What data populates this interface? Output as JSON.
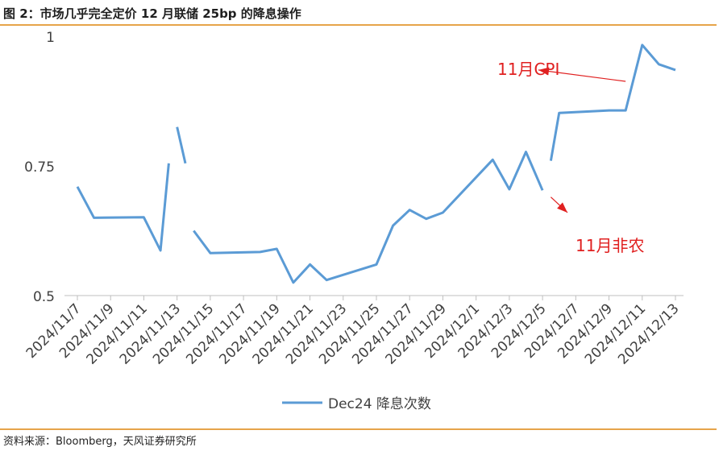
{
  "title": "图 2：市场几乎完全定价 12 月联储 25bp 的降息操作",
  "source": "资料来源：Bloomberg，天风证券研究所",
  "colors": {
    "line": "#5b9bd5",
    "annotation": "#e02020",
    "axis": "#bfbfbf",
    "rule": "#e6a44a"
  },
  "chart_data": {
    "type": "line",
    "title": "",
    "xlabel": "",
    "ylabel": "",
    "ylim": [
      0.5,
      1
    ],
    "y_ticks": [
      {
        "value": 0.5,
        "label": "0.5"
      },
      {
        "value": 0.75,
        "label": "0.75"
      },
      {
        "value": 1,
        "label": "1"
      }
    ],
    "x_range": [
      "2024-11-07",
      "2024-12-13"
    ],
    "x_ticks": [
      {
        "date": "2024-11-07",
        "label": "2024/11/7"
      },
      {
        "date": "2024-11-09",
        "label": "2024/11/9"
      },
      {
        "date": "2024-11-11",
        "label": "2024/11/11"
      },
      {
        "date": "2024-11-13",
        "label": "2024/11/13"
      },
      {
        "date": "2024-11-15",
        "label": "2024/11/15"
      },
      {
        "date": "2024-11-17",
        "label": "2024/11/17"
      },
      {
        "date": "2024-11-19",
        "label": "2024/11/19"
      },
      {
        "date": "2024-11-21",
        "label": "2024/11/21"
      },
      {
        "date": "2024-11-23",
        "label": "2024/11/23"
      },
      {
        "date": "2024-11-25",
        "label": "2024/11/25"
      },
      {
        "date": "2024-11-27",
        "label": "2024/11/27"
      },
      {
        "date": "2024-11-29",
        "label": "2024/11/29"
      },
      {
        "date": "2024-12-01",
        "label": "2024/12/1"
      },
      {
        "date": "2024-12-03",
        "label": "2024/12/3"
      },
      {
        "date": "2024-12-05",
        "label": "2024/12/5"
      },
      {
        "date": "2024-12-07",
        "label": "2024/12/7"
      },
      {
        "date": "2024-12-09",
        "label": "2024/12/9"
      },
      {
        "date": "2024-12-11",
        "label": "2024/12/11"
      },
      {
        "date": "2024-12-13",
        "label": "2024/12/13"
      }
    ],
    "grid": false,
    "legend": {
      "position": "bottom"
    },
    "series": [
      {
        "name": "Dec24 降息次数",
        "segments": [
          [
            {
              "x": "2024-11-07",
              "y": 0.71
            },
            {
              "x": "2024-11-08",
              "y": 0.65
            },
            {
              "x": "2024-11-11",
              "y": 0.651
            },
            {
              "x": "2024-11-12",
              "y": 0.587
            },
            {
              "x": "2024-11-12 12:00",
              "y": 0.755
            }
          ],
          [
            {
              "x": "2024-11-13",
              "y": 0.825
            },
            {
              "x": "2024-11-13 12:00",
              "y": 0.755
            }
          ],
          [
            {
              "x": "2024-11-14",
              "y": 0.625
            },
            {
              "x": "2024-11-15",
              "y": 0.582
            },
            {
              "x": "2024-11-18",
              "y": 0.584
            },
            {
              "x": "2024-11-19",
              "y": 0.59
            },
            {
              "x": "2024-11-20",
              "y": 0.525
            },
            {
              "x": "2024-11-21",
              "y": 0.56
            },
            {
              "x": "2024-11-22",
              "y": 0.53
            },
            {
              "x": "2024-11-25",
              "y": 0.56
            },
            {
              "x": "2024-11-26",
              "y": 0.635
            },
            {
              "x": "2024-11-27",
              "y": 0.665
            },
            {
              "x": "2024-11-28",
              "y": 0.648
            },
            {
              "x": "2024-11-29",
              "y": 0.66
            },
            {
              "x": "2024-12-02",
              "y": 0.762
            },
            {
              "x": "2024-12-03",
              "y": 0.705
            },
            {
              "x": "2024-12-04",
              "y": 0.777
            },
            {
              "x": "2024-12-05",
              "y": 0.703
            }
          ],
          [
            {
              "x": "2024-12-05 12:00",
              "y": 0.76
            },
            {
              "x": "2024-12-06",
              "y": 0.852
            },
            {
              "x": "2024-12-09",
              "y": 0.857
            },
            {
              "x": "2024-12-10",
              "y": 0.857
            },
            {
              "x": "2024-12-11",
              "y": 0.983
            },
            {
              "x": "2024-12-12",
              "y": 0.946
            },
            {
              "x": "2024-12-13",
              "y": 0.935
            }
          ]
        ]
      }
    ],
    "annotations": [
      {
        "text": "11月CPI",
        "target": {
          "x": "2024-12-04 18:00",
          "y": 0.935
        },
        "tail": {
          "x": "2024-12-10",
          "y": 0.913
        }
      },
      {
        "text": "11月非农",
        "target": {
          "x": "2024-12-06 12:00",
          "y": 0.66
        },
        "tail": {
          "x": "2024-12-05 12:00",
          "y": 0.69
        }
      }
    ]
  }
}
